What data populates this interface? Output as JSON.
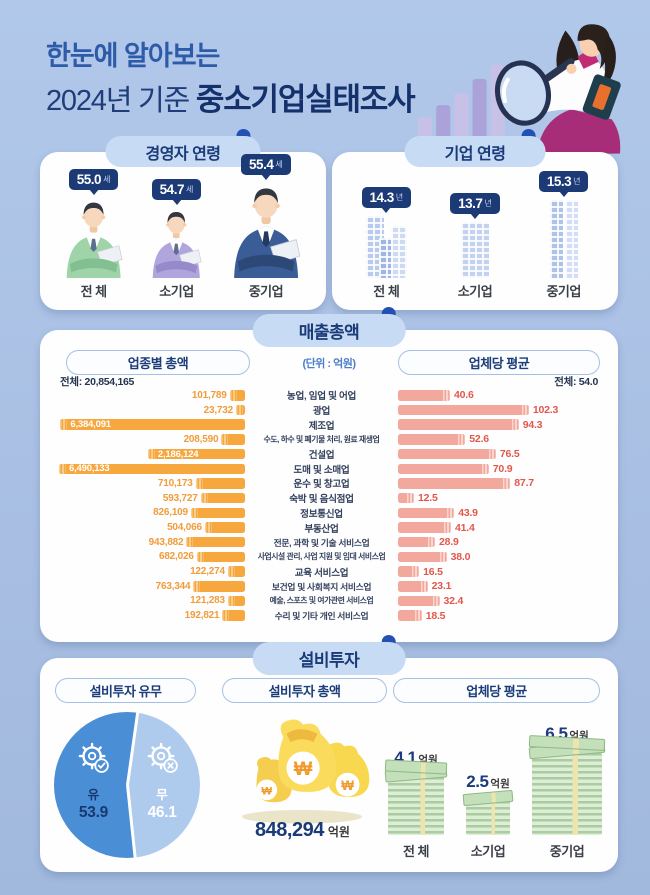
{
  "header": {
    "title_line1": "한눈에 알아보는",
    "title_line2_regular": "2024년 기준 ",
    "title_line2_bold": "중소기업실태조사"
  },
  "ceo_age": {
    "title": "경영자 연령",
    "items": [
      {
        "label": "전 체",
        "value": "55.0",
        "unit": "세",
        "suit": "#9ED4A8",
        "suit_dark": "#82C092",
        "tie": "#5C6F8E"
      },
      {
        "label": "소기업",
        "value": "54.7",
        "unit": "세",
        "suit": "#B0A6DD",
        "suit_dark": "#968ACB",
        "tie": "#5C6F8E"
      },
      {
        "label": "중기업",
        "value": "55.4",
        "unit": "세",
        "suit": "#3A5C97",
        "suit_dark": "#2C4877",
        "tie": "#24395F"
      }
    ]
  },
  "company_age": {
    "title": "기업 연령",
    "items": [
      {
        "label": "전 체",
        "value": "14.3",
        "unit": "년",
        "size": "md"
      },
      {
        "label": "소기업",
        "value": "13.7",
        "unit": "년",
        "size": "sm"
      },
      {
        "label": "중기업",
        "value": "15.3",
        "unit": "년",
        "size": "lg"
      }
    ]
  },
  "sales": {
    "title": "매출총액",
    "unit_note": "(단위 : 억원)",
    "left_header": "업종별 총액",
    "right_header": "업체당 평균",
    "left_total": "전체: 20,854,165",
    "right_total": "전체: 54.0",
    "rows": [
      {
        "label": "농업, 임업 및 어업",
        "total": "101,789",
        "avg": "40.6"
      },
      {
        "label": "광업",
        "total": "23,732",
        "avg": "102.3"
      },
      {
        "label": "제조업",
        "total": "6,384,091",
        "avg": "94.3"
      },
      {
        "label": "수도, 하수 및 폐기물 처리, 원료 재생업",
        "total": "208,590",
        "avg": "52.6"
      },
      {
        "label": "건설업",
        "total": "2,186,124",
        "avg": "76.5"
      },
      {
        "label": "도매 및 소매업",
        "total": "6,490,133",
        "avg": "70.9"
      },
      {
        "label": "운수 및 창고업",
        "total": "710,173",
        "avg": "87.7"
      },
      {
        "label": "숙박 및 음식점업",
        "total": "593,727",
        "avg": "12.5"
      },
      {
        "label": "정보통신업",
        "total": "826,109",
        "avg": "43.9"
      },
      {
        "label": "부동산업",
        "total": "504,066",
        "avg": "41.4"
      },
      {
        "label": "전문, 과학 및 기술 서비스업",
        "total": "943,882",
        "avg": "28.9"
      },
      {
        "label": "사업시설 관리, 사업 지원 및 임대 서비스업",
        "total": "682,026",
        "avg": "38.0"
      },
      {
        "label": "교육 서비스업",
        "total": "122,274",
        "avg": "16.5"
      },
      {
        "label": "보건업 및 사회복지 서비스업",
        "total": "763,344",
        "avg": "23.1"
      },
      {
        "label": "예술, 스포츠 및 여가관련 서비스업",
        "total": "121,283",
        "avg": "32.4"
      },
      {
        "label": "수리 및 기타 개인 서비스업",
        "total": "192,821",
        "avg": "18.5"
      }
    ]
  },
  "investment": {
    "title": "설비투자",
    "pie": {
      "header": "설비투자 유무",
      "slices": [
        {
          "label": "유",
          "value": "53.9",
          "color": "#4A8ED6"
        },
        {
          "label": "무",
          "value": "46.1",
          "color": "#AECBED"
        }
      ]
    },
    "total": {
      "header": "설비투자 총액",
      "value": "848,294",
      "unit": "억원",
      "currency": "₩"
    },
    "average": {
      "header": "업체당 평균",
      "items": [
        {
          "label": "전 체",
          "value": "4.1",
          "unit": "억원",
          "size": "md"
        },
        {
          "label": "소기업",
          "value": "2.5",
          "unit": "억원",
          "size": "sm"
        },
        {
          "label": "중기업",
          "value": "6.5",
          "unit": "억원",
          "size": "lg"
        }
      ]
    }
  },
  "colors": {
    "page_bg": "#AEC5E8",
    "navy": "#1A3A78",
    "pill_bg": "#C7DBF4",
    "orange_bar": "#F6A73E",
    "pink_bar": "#F3A89E",
    "red_label": "#E2574A",
    "pie_yes": "#4A8ED6",
    "pie_no": "#AECBED"
  },
  "chart_data": [
    {
      "type": "bar",
      "orientation": "horizontal",
      "title": "업종별 총액 (매출총액)",
      "unit": "억원",
      "total_label": "전체: 20,854,165",
      "categories": [
        "농업, 임업 및 어업",
        "광업",
        "제조업",
        "수도, 하수 및 폐기물 처리, 원료 재생업",
        "건설업",
        "도매 및 소매업",
        "운수 및 창고업",
        "숙박 및 음식점업",
        "정보통신업",
        "부동산업",
        "전문, 과학 및 기술 서비스업",
        "사업시설 관리, 사업 지원 및 임대 서비스업",
        "교육 서비스업",
        "보건업 및 사회복지 서비스업",
        "예술, 스포츠 및 여가관련 서비스업",
        "수리 및 기타 개인 서비스업"
      ],
      "values": [
        101789,
        23732,
        6384091,
        208590,
        2186124,
        6490133,
        710173,
        593727,
        826109,
        504066,
        943882,
        682026,
        122274,
        763344,
        121283,
        192821
      ]
    },
    {
      "type": "bar",
      "orientation": "horizontal",
      "title": "업체당 평균 (매출총액)",
      "unit": "억원",
      "total_label": "전체: 54.0",
      "categories": [
        "농업, 임업 및 어업",
        "광업",
        "제조업",
        "수도, 하수 및 폐기물 처리, 원료 재생업",
        "건설업",
        "도매 및 소매업",
        "운수 및 창고업",
        "숙박 및 음식점업",
        "정보통신업",
        "부동산업",
        "전문, 과학 및 기술 서비스업",
        "사업시설 관리, 사업 지원 및 임대 서비스업",
        "교육 서비스업",
        "보건업 및 사회복지 서비스업",
        "예술, 스포츠 및 여가관련 서비스업",
        "수리 및 기타 개인 서비스업"
      ],
      "values": [
        40.6,
        102.3,
        94.3,
        52.6,
        76.5,
        70.9,
        87.7,
        12.5,
        43.9,
        41.4,
        28.9,
        38.0,
        16.5,
        23.1,
        32.4,
        18.5
      ]
    },
    {
      "type": "pie",
      "title": "설비투자 유무",
      "labels": [
        "유",
        "무"
      ],
      "values": [
        53.9,
        46.1
      ]
    },
    {
      "type": "bar",
      "title": "경영자 연령 (세)",
      "categories": [
        "전 체",
        "소기업",
        "중기업"
      ],
      "values": [
        55.0,
        54.7,
        55.4
      ]
    },
    {
      "type": "bar",
      "title": "기업 연령 (년)",
      "categories": [
        "전 체",
        "소기업",
        "중기업"
      ],
      "values": [
        14.3,
        13.7,
        15.3
      ]
    },
    {
      "type": "bar",
      "title": "설비투자 업체당 평균 (억원)",
      "categories": [
        "전 체",
        "소기업",
        "중기업"
      ],
      "values": [
        4.1,
        2.5,
        6.5
      ]
    },
    {
      "type": "bar",
      "title": "설비투자 총액 (억원)",
      "categories": [
        "전체"
      ],
      "values": [
        848294
      ]
    }
  ]
}
